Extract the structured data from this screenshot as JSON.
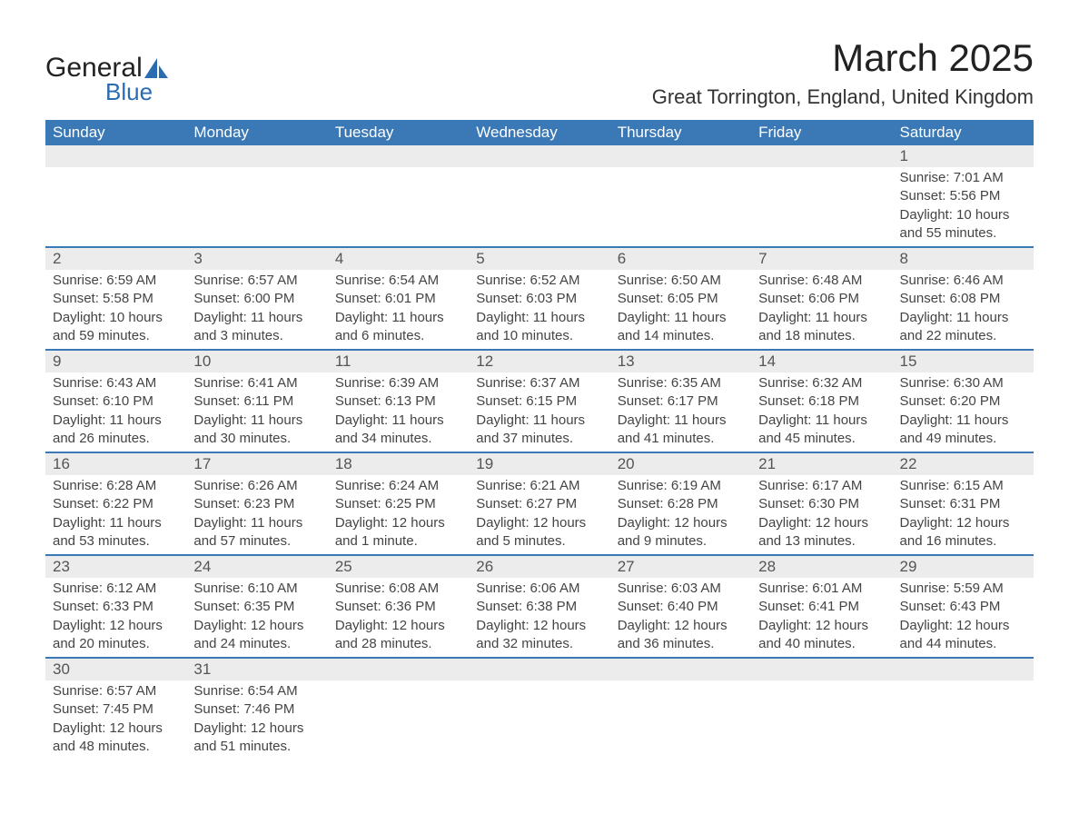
{
  "logo": {
    "text1": "General",
    "text2": "Blue"
  },
  "title": "March 2025",
  "location": "Great Torrington, England, United Kingdom",
  "day_headers": [
    "Sunday",
    "Monday",
    "Tuesday",
    "Wednesday",
    "Thursday",
    "Friday",
    "Saturday"
  ],
  "colors": {
    "header_bg": "#3a78b6",
    "header_text": "#ffffff",
    "daynum_bg": "#ececec",
    "border": "#3a78b6",
    "body_text": "#444444",
    "logo_accent": "#2a6cb0"
  },
  "weeks": [
    {
      "nums": [
        "",
        "",
        "",
        "",
        "",
        "",
        "1"
      ],
      "cells": [
        null,
        null,
        null,
        null,
        null,
        null,
        {
          "sunrise": "Sunrise: 7:01 AM",
          "sunset": "Sunset: 5:56 PM",
          "dl1": "Daylight: 10 hours",
          "dl2": "and 55 minutes."
        }
      ]
    },
    {
      "nums": [
        "2",
        "3",
        "4",
        "5",
        "6",
        "7",
        "8"
      ],
      "cells": [
        {
          "sunrise": "Sunrise: 6:59 AM",
          "sunset": "Sunset: 5:58 PM",
          "dl1": "Daylight: 10 hours",
          "dl2": "and 59 minutes."
        },
        {
          "sunrise": "Sunrise: 6:57 AM",
          "sunset": "Sunset: 6:00 PM",
          "dl1": "Daylight: 11 hours",
          "dl2": "and 3 minutes."
        },
        {
          "sunrise": "Sunrise: 6:54 AM",
          "sunset": "Sunset: 6:01 PM",
          "dl1": "Daylight: 11 hours",
          "dl2": "and 6 minutes."
        },
        {
          "sunrise": "Sunrise: 6:52 AM",
          "sunset": "Sunset: 6:03 PM",
          "dl1": "Daylight: 11 hours",
          "dl2": "and 10 minutes."
        },
        {
          "sunrise": "Sunrise: 6:50 AM",
          "sunset": "Sunset: 6:05 PM",
          "dl1": "Daylight: 11 hours",
          "dl2": "and 14 minutes."
        },
        {
          "sunrise": "Sunrise: 6:48 AM",
          "sunset": "Sunset: 6:06 PM",
          "dl1": "Daylight: 11 hours",
          "dl2": "and 18 minutes."
        },
        {
          "sunrise": "Sunrise: 6:46 AM",
          "sunset": "Sunset: 6:08 PM",
          "dl1": "Daylight: 11 hours",
          "dl2": "and 22 minutes."
        }
      ]
    },
    {
      "nums": [
        "9",
        "10",
        "11",
        "12",
        "13",
        "14",
        "15"
      ],
      "cells": [
        {
          "sunrise": "Sunrise: 6:43 AM",
          "sunset": "Sunset: 6:10 PM",
          "dl1": "Daylight: 11 hours",
          "dl2": "and 26 minutes."
        },
        {
          "sunrise": "Sunrise: 6:41 AM",
          "sunset": "Sunset: 6:11 PM",
          "dl1": "Daylight: 11 hours",
          "dl2": "and 30 minutes."
        },
        {
          "sunrise": "Sunrise: 6:39 AM",
          "sunset": "Sunset: 6:13 PM",
          "dl1": "Daylight: 11 hours",
          "dl2": "and 34 minutes."
        },
        {
          "sunrise": "Sunrise: 6:37 AM",
          "sunset": "Sunset: 6:15 PM",
          "dl1": "Daylight: 11 hours",
          "dl2": "and 37 minutes."
        },
        {
          "sunrise": "Sunrise: 6:35 AM",
          "sunset": "Sunset: 6:17 PM",
          "dl1": "Daylight: 11 hours",
          "dl2": "and 41 minutes."
        },
        {
          "sunrise": "Sunrise: 6:32 AM",
          "sunset": "Sunset: 6:18 PM",
          "dl1": "Daylight: 11 hours",
          "dl2": "and 45 minutes."
        },
        {
          "sunrise": "Sunrise: 6:30 AM",
          "sunset": "Sunset: 6:20 PM",
          "dl1": "Daylight: 11 hours",
          "dl2": "and 49 minutes."
        }
      ]
    },
    {
      "nums": [
        "16",
        "17",
        "18",
        "19",
        "20",
        "21",
        "22"
      ],
      "cells": [
        {
          "sunrise": "Sunrise: 6:28 AM",
          "sunset": "Sunset: 6:22 PM",
          "dl1": "Daylight: 11 hours",
          "dl2": "and 53 minutes."
        },
        {
          "sunrise": "Sunrise: 6:26 AM",
          "sunset": "Sunset: 6:23 PM",
          "dl1": "Daylight: 11 hours",
          "dl2": "and 57 minutes."
        },
        {
          "sunrise": "Sunrise: 6:24 AM",
          "sunset": "Sunset: 6:25 PM",
          "dl1": "Daylight: 12 hours",
          "dl2": "and 1 minute."
        },
        {
          "sunrise": "Sunrise: 6:21 AM",
          "sunset": "Sunset: 6:27 PM",
          "dl1": "Daylight: 12 hours",
          "dl2": "and 5 minutes."
        },
        {
          "sunrise": "Sunrise: 6:19 AM",
          "sunset": "Sunset: 6:28 PM",
          "dl1": "Daylight: 12 hours",
          "dl2": "and 9 minutes."
        },
        {
          "sunrise": "Sunrise: 6:17 AM",
          "sunset": "Sunset: 6:30 PM",
          "dl1": "Daylight: 12 hours",
          "dl2": "and 13 minutes."
        },
        {
          "sunrise": "Sunrise: 6:15 AM",
          "sunset": "Sunset: 6:31 PM",
          "dl1": "Daylight: 12 hours",
          "dl2": "and 16 minutes."
        }
      ]
    },
    {
      "nums": [
        "23",
        "24",
        "25",
        "26",
        "27",
        "28",
        "29"
      ],
      "cells": [
        {
          "sunrise": "Sunrise: 6:12 AM",
          "sunset": "Sunset: 6:33 PM",
          "dl1": "Daylight: 12 hours",
          "dl2": "and 20 minutes."
        },
        {
          "sunrise": "Sunrise: 6:10 AM",
          "sunset": "Sunset: 6:35 PM",
          "dl1": "Daylight: 12 hours",
          "dl2": "and 24 minutes."
        },
        {
          "sunrise": "Sunrise: 6:08 AM",
          "sunset": "Sunset: 6:36 PM",
          "dl1": "Daylight: 12 hours",
          "dl2": "and 28 minutes."
        },
        {
          "sunrise": "Sunrise: 6:06 AM",
          "sunset": "Sunset: 6:38 PM",
          "dl1": "Daylight: 12 hours",
          "dl2": "and 32 minutes."
        },
        {
          "sunrise": "Sunrise: 6:03 AM",
          "sunset": "Sunset: 6:40 PM",
          "dl1": "Daylight: 12 hours",
          "dl2": "and 36 minutes."
        },
        {
          "sunrise": "Sunrise: 6:01 AM",
          "sunset": "Sunset: 6:41 PM",
          "dl1": "Daylight: 12 hours",
          "dl2": "and 40 minutes."
        },
        {
          "sunrise": "Sunrise: 5:59 AM",
          "sunset": "Sunset: 6:43 PM",
          "dl1": "Daylight: 12 hours",
          "dl2": "and 44 minutes."
        }
      ]
    },
    {
      "nums": [
        "30",
        "31",
        "",
        "",
        "",
        "",
        ""
      ],
      "cells": [
        {
          "sunrise": "Sunrise: 6:57 AM",
          "sunset": "Sunset: 7:45 PM",
          "dl1": "Daylight: 12 hours",
          "dl2": "and 48 minutes."
        },
        {
          "sunrise": "Sunrise: 6:54 AM",
          "sunset": "Sunset: 7:46 PM",
          "dl1": "Daylight: 12 hours",
          "dl2": "and 51 minutes."
        },
        null,
        null,
        null,
        null,
        null
      ]
    }
  ]
}
